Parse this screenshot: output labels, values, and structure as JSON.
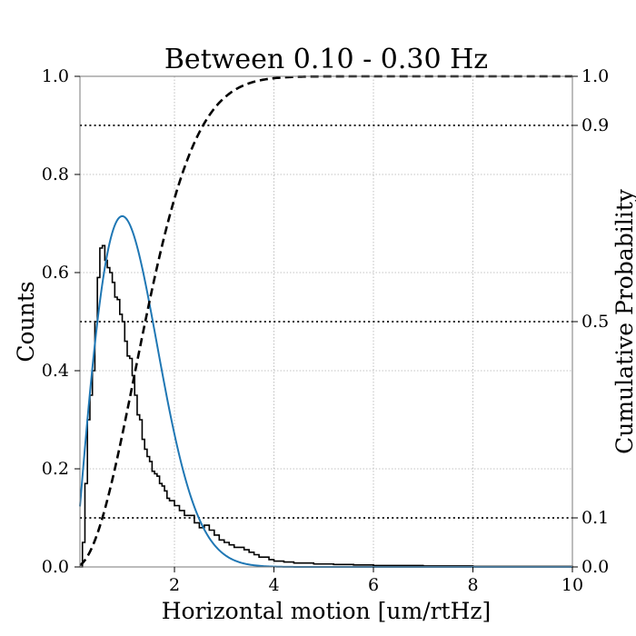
{
  "chart_data": {
    "type": "histogram",
    "title": "Between 0.10 - 0.30 Hz",
    "xlabel": "Horizontal motion [um/rtHz]",
    "ylabel": "Counts",
    "y2label": "Cumulative Probability",
    "xlim": [
      0.1,
      10
    ],
    "ylim": [
      0,
      1
    ],
    "y2lim": [
      0,
      1
    ],
    "xticks": [
      2,
      4,
      6,
      8,
      10
    ],
    "yticks": [
      0.0,
      0.2,
      0.4,
      0.6,
      0.8,
      1.0
    ],
    "y2ticks": [
      0.0,
      0.1,
      0.5,
      0.9,
      1.0
    ],
    "grid": true,
    "reference_lines": [
      0.1,
      0.5,
      0.9
    ],
    "histogram": {
      "edges": [
        0.1,
        0.15,
        0.2,
        0.25,
        0.3,
        0.35,
        0.4,
        0.45,
        0.5,
        0.55,
        0.6,
        0.65,
        0.7,
        0.75,
        0.8,
        0.85,
        0.9,
        0.95,
        1.0,
        1.05,
        1.1,
        1.15,
        1.2,
        1.25,
        1.3,
        1.35,
        1.4,
        1.45,
        1.5,
        1.55,
        1.6,
        1.65,
        1.7,
        1.75,
        1.8,
        1.85,
        1.9,
        1.95,
        2.0,
        2.1,
        2.2,
        2.3,
        2.4,
        2.5,
        2.6,
        2.7,
        2.8,
        2.9,
        3.0,
        3.1,
        3.2,
        3.3,
        3.4,
        3.5,
        3.6,
        3.7,
        3.8,
        3.9,
        4.0,
        4.2,
        4.4,
        4.6,
        4.8,
        5.0,
        5.2,
        5.4,
        5.6,
        5.8,
        6.0,
        6.5,
        7.0,
        7.5,
        8.0,
        9.0,
        10.0
      ],
      "values": [
        0.0,
        0.05,
        0.17,
        0.3,
        0.35,
        0.4,
        0.5,
        0.59,
        0.65,
        0.655,
        0.625,
        0.61,
        0.6,
        0.58,
        0.55,
        0.545,
        0.515,
        0.5,
        0.46,
        0.43,
        0.425,
        0.39,
        0.35,
        0.31,
        0.3,
        0.26,
        0.24,
        0.225,
        0.215,
        0.195,
        0.19,
        0.185,
        0.17,
        0.165,
        0.155,
        0.14,
        0.135,
        0.135,
        0.125,
        0.115,
        0.105,
        0.105,
        0.09,
        0.08,
        0.085,
        0.075,
        0.065,
        0.055,
        0.05,
        0.045,
        0.04,
        0.04,
        0.035,
        0.03,
        0.025,
        0.02,
        0.02,
        0.015,
        0.012,
        0.01,
        0.008,
        0.008,
        0.006,
        0.006,
        0.005,
        0.005,
        0.004,
        0.004,
        0.003,
        0.003,
        0.002,
        0.002,
        0.001,
        0.001
      ],
      "color": "#000000"
    },
    "fit": {
      "type": "rayleigh",
      "mode": 0.95,
      "peak": 0.715,
      "color": "#1f77b4"
    },
    "cdf": {
      "type": "rayleigh",
      "sigma": 1.2,
      "color": "#000000",
      "style": "dashed"
    }
  }
}
